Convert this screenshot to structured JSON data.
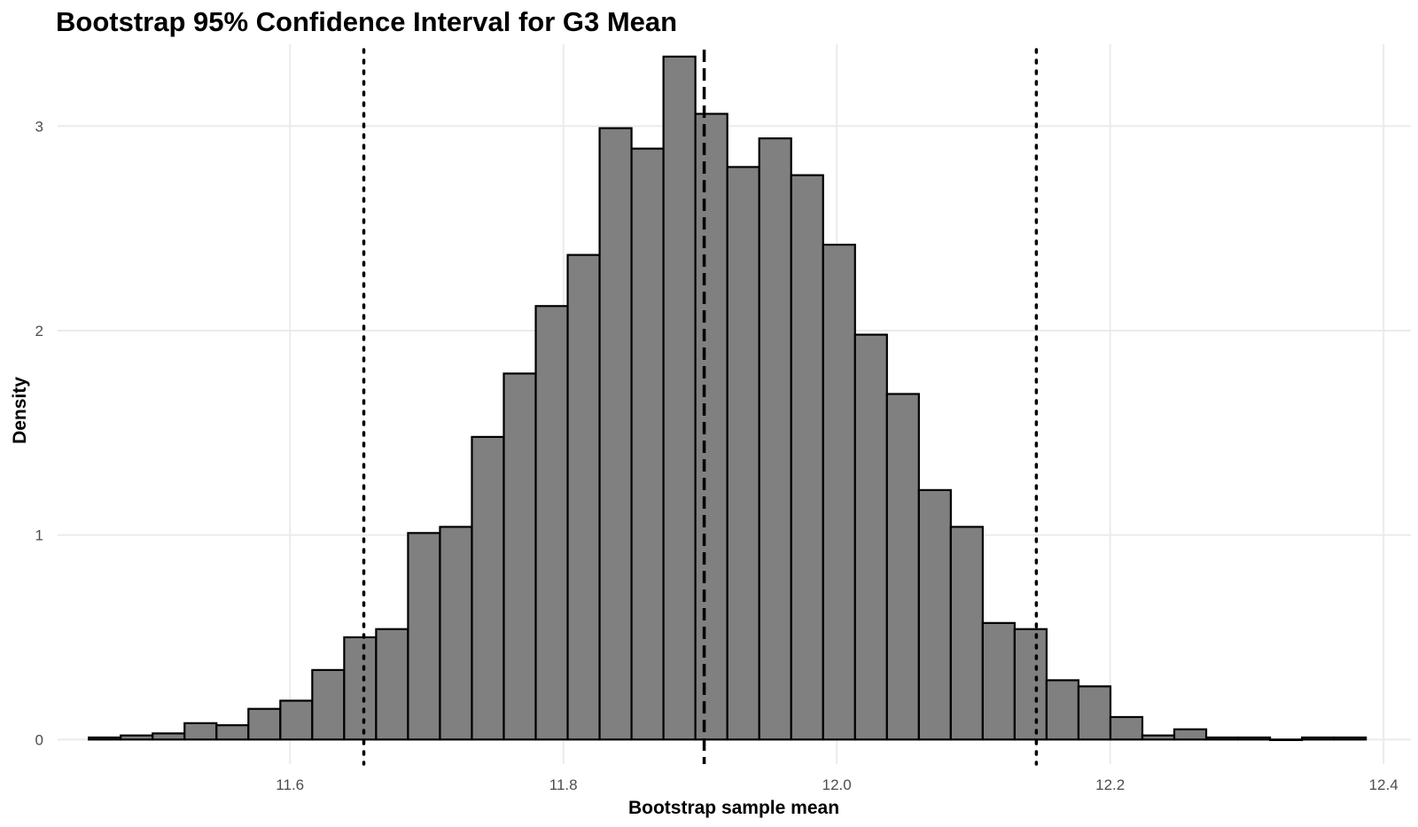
{
  "chart_data": {
    "type": "bar",
    "title": "Bootstrap 95% Confidence Interval for G3 Mean",
    "xlabel": "Bootstrap sample mean",
    "ylabel": "Density",
    "xlim": [
      11.43,
      12.42
    ],
    "ylim": [
      -0.12,
      3.4
    ],
    "x_ticks": [
      11.6,
      11.8,
      12.0,
      12.2,
      12.4
    ],
    "x_tick_labels": [
      "11.6",
      "11.8",
      "12.0",
      "12.2",
      "12.4"
    ],
    "y_ticks": [
      0,
      1,
      2,
      3
    ],
    "y_tick_labels": [
      "0",
      "1",
      "2",
      "3"
    ],
    "grid": true,
    "bins": {
      "start": 11.4528,
      "width": 0.023356,
      "values": [
        0.01,
        0.02,
        0.03,
        0.08,
        0.07,
        0.15,
        0.19,
        0.34,
        0.5,
        0.54,
        1.01,
        1.04,
        1.48,
        1.79,
        2.12,
        2.37,
        2.99,
        2.89,
        3.34,
        3.06,
        2.8,
        2.94,
        2.76,
        2.42,
        1.98,
        1.69,
        1.22,
        1.04,
        0.57,
        0.54,
        0.29,
        0.26,
        0.11,
        0.02,
        0.05,
        0.01,
        0.01,
        0.0,
        0.01,
        0.01
      ]
    },
    "reference_lines": [
      {
        "name": "mean",
        "value": 11.903,
        "style": "dashed"
      },
      {
        "name": "ci-lower",
        "value": 11.654,
        "style": "dotted"
      },
      {
        "name": "ci-upper",
        "value": 12.146,
        "style": "dotted"
      }
    ],
    "colors": {
      "bar_fill": "#808080",
      "bar_stroke": "#000000",
      "grid": "#ebebeb",
      "tick_text": "#4d4d4d"
    }
  }
}
